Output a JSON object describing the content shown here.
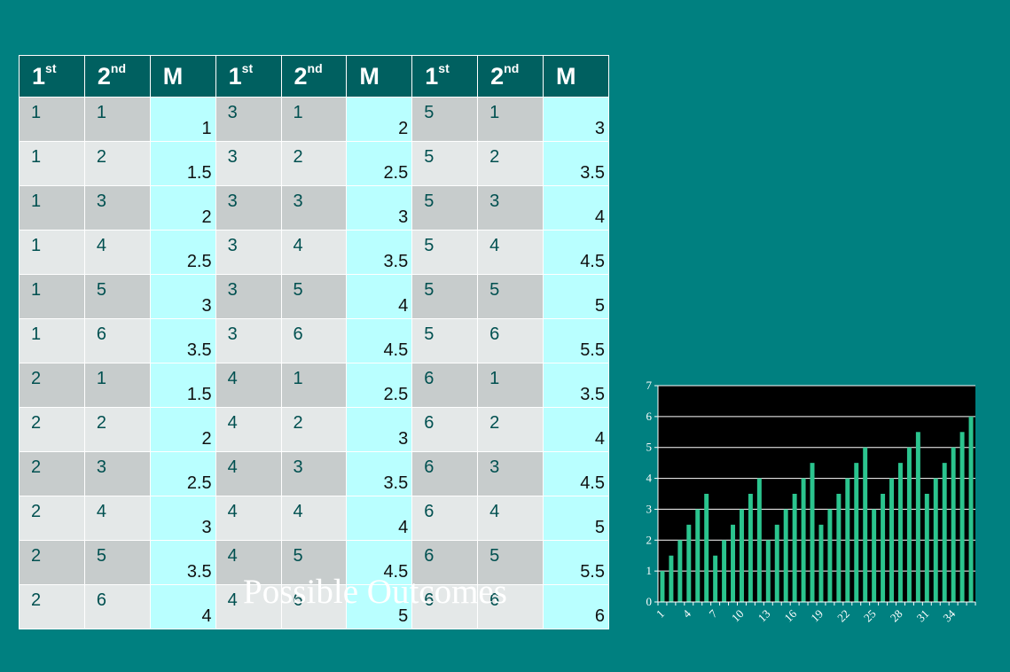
{
  "table": {
    "headers": [
      {
        "main": "1",
        "sup": "st"
      },
      {
        "main": "2",
        "sup": "nd"
      },
      {
        "main": "M",
        "sup": ""
      },
      {
        "main": "1",
        "sup": "st"
      },
      {
        "main": "2",
        "sup": "nd"
      },
      {
        "main": "M",
        "sup": ""
      },
      {
        "main": "1",
        "sup": "st"
      },
      {
        "main": "2",
        "sup": "nd"
      },
      {
        "main": "M",
        "sup": ""
      }
    ],
    "rows": [
      [
        "1",
        "1",
        "1",
        "3",
        "1",
        "2",
        "5",
        "1",
        "3"
      ],
      [
        "1",
        "2",
        "1.5",
        "3",
        "2",
        "2.5",
        "5",
        "2",
        "3.5"
      ],
      [
        "1",
        "3",
        "2",
        "3",
        "3",
        "3",
        "5",
        "3",
        "4"
      ],
      [
        "1",
        "4",
        "2.5",
        "3",
        "4",
        "3.5",
        "5",
        "4",
        "4.5"
      ],
      [
        "1",
        "5",
        "3",
        "3",
        "5",
        "4",
        "5",
        "5",
        "5"
      ],
      [
        "1",
        "6",
        "3.5",
        "3",
        "6",
        "4.5",
        "5",
        "6",
        "5.5"
      ],
      [
        "2",
        "1",
        "1.5",
        "4",
        "1",
        "2.5",
        "6",
        "1",
        "3.5"
      ],
      [
        "2",
        "2",
        "2",
        "4",
        "2",
        "3",
        "6",
        "2",
        "4"
      ],
      [
        "2",
        "3",
        "2.5",
        "4",
        "3",
        "3.5",
        "6",
        "3",
        "4.5"
      ],
      [
        "2",
        "4",
        "3",
        "4",
        "4",
        "4",
        "6",
        "4",
        "5"
      ],
      [
        "2",
        "5",
        "3.5",
        "4",
        "5",
        "4.5",
        "6",
        "5",
        "5.5"
      ],
      [
        "2",
        "6",
        "4",
        "4",
        "6",
        "5",
        "6",
        "6",
        "6"
      ]
    ]
  },
  "caption": "Possible Outcomes",
  "chart_data": {
    "type": "bar",
    "x": [
      1,
      2,
      3,
      4,
      5,
      6,
      7,
      8,
      9,
      10,
      11,
      12,
      13,
      14,
      15,
      16,
      17,
      18,
      19,
      20,
      21,
      22,
      23,
      24,
      25,
      26,
      27,
      28,
      29,
      30,
      31,
      32,
      33,
      34,
      35,
      36
    ],
    "values": [
      1,
      1.5,
      2,
      2.5,
      3,
      3.5,
      1.5,
      2,
      2.5,
      3,
      3.5,
      4,
      2,
      2.5,
      3,
      3.5,
      4,
      4.5,
      2.5,
      3,
      3.5,
      4,
      4.5,
      5,
      3,
      3.5,
      4,
      4.5,
      5,
      5.5,
      3.5,
      4,
      4.5,
      5,
      5.5,
      6
    ],
    "xticks": [
      "1",
      "4",
      "7",
      "10",
      "13",
      "16",
      "19",
      "22",
      "25",
      "28",
      "31",
      "34"
    ],
    "yticks": [
      "0",
      "1",
      "2",
      "3",
      "4",
      "5",
      "6",
      "7"
    ],
    "ylim": [
      0,
      7
    ],
    "grid": true,
    "colors": {
      "bar": "#2bc48e",
      "plot_bg": "#000000",
      "grid": "#ffffff",
      "text": "#ffffff"
    }
  }
}
